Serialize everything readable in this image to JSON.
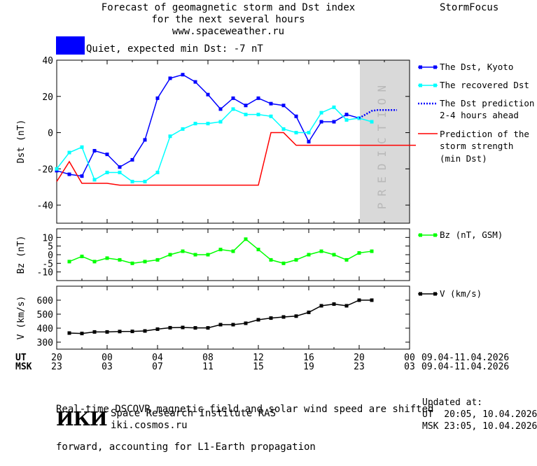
{
  "header": {
    "title_lines": [
      "Forecast of geomagnetic storm and Dst index",
      "for the next several hours",
      "www.spaceweather.ru"
    ],
    "brand": "StormFocus"
  },
  "status": {
    "color": "#0000ff",
    "text": "Quiet, expected min Dst: -7 nT"
  },
  "legend": {
    "dst_kyoto": "The Dst, Kyoto",
    "dst_recovered": "The recovered Dst",
    "dst_prediction": [
      "The Dst prediction",
      "2-4 hours ahead"
    ],
    "storm_strength": [
      "Prediction of the",
      "storm strength",
      "(min Dst)"
    ],
    "bz": "Bz (nT, GSM)",
    "v": "V (km/s)"
  },
  "prediction_band_label": "PREDICTION",
  "time_axis": {
    "ut_label": "UT",
    "msk_label": "MSK",
    "ut_ticks": [
      "20",
      "00",
      "04",
      "08",
      "12",
      "16",
      "20",
      "00"
    ],
    "msk_ticks": [
      "23",
      "03",
      "07",
      "11",
      "15",
      "19",
      "23",
      "03"
    ],
    "date_range": "09.04-11.04.2026"
  },
  "footer": {
    "note_lines": [
      "Real-time DSCOVR magnetic field and solar wind speed are shifted",
      "forward, accounting for L1-Earth propagation"
    ],
    "institute": "Space Research Institute RAS",
    "institute_url": "iki.cosmos.ru",
    "logo_text": "ИКИ",
    "updated_label": "Updated at:",
    "updated_ut": "UT  20:05, 10.04.2026",
    "updated_msk": "MSK 23:05, 10.04.2026"
  },
  "chart_data": [
    {
      "type": "line",
      "ylabel": "Dst (nT)",
      "ylim": [
        -50,
        40
      ],
      "yticks": [
        40,
        20,
        0,
        -20,
        -40
      ],
      "x_hours_from_20UT": [
        0,
        1,
        2,
        3,
        4,
        5,
        6,
        7,
        8,
        9,
        10,
        11,
        12,
        13,
        14,
        15,
        16,
        17,
        18,
        19,
        20,
        21,
        22,
        23,
        24
      ],
      "prediction_x_range": [
        24,
        27
      ],
      "series": [
        {
          "name": "The Dst, Kyoto",
          "color": "#0000ff",
          "x": [
            0,
            1,
            2,
            3,
            4,
            5,
            6,
            7,
            8,
            9,
            10,
            11,
            12,
            13,
            14,
            15,
            16,
            17,
            18,
            19,
            20,
            21,
            22,
            23,
            24
          ],
          "values": [
            -21,
            -23,
            -24,
            -10,
            -12,
            -19,
            -15,
            -4,
            19,
            30,
            32,
            28,
            21,
            13,
            19,
            15,
            19,
            16,
            15,
            9,
            -5,
            6,
            6,
            10,
            8
          ]
        },
        {
          "name": "The recovered Dst",
          "color": "#00ffff",
          "x": [
            0,
            1,
            2,
            3,
            4,
            5,
            6,
            7,
            8,
            9,
            10,
            11,
            12,
            13,
            14,
            15,
            16,
            17,
            18,
            19,
            20,
            21,
            22,
            23,
            24,
            25
          ],
          "values": [
            -20,
            -11,
            -8,
            -26,
            -22,
            -22,
            -27,
            -27,
            -22,
            -2,
            2,
            5,
            5,
            6,
            13,
            10,
            10,
            9,
            2,
            0,
            0,
            11,
            14,
            7,
            8,
            6
          ]
        },
        {
          "name": "The Dst prediction 2-4 hours ahead",
          "color": "#0000ff",
          "x": [
            24,
            24.5,
            25,
            25.5,
            26,
            26.5,
            27
          ],
          "values": [
            8,
            10,
            12,
            12.5,
            12.5,
            12.5,
            12.5
          ]
        },
        {
          "name": "Prediction of the storm strength (min Dst)",
          "color": "#ff0000",
          "x": [
            0,
            1,
            2,
            3,
            4,
            5,
            6,
            7,
            8,
            9,
            10,
            11,
            12,
            13,
            14,
            15,
            15.5,
            16,
            17,
            18,
            19,
            20,
            21,
            22,
            23,
            24,
            25,
            26,
            27,
            28,
            28.5
          ],
          "values": [
            -27,
            -16,
            -28,
            -28,
            -28,
            -29,
            -29,
            -29,
            -29,
            -29,
            -29,
            -29,
            -29,
            -29,
            -29,
            -29,
            -29,
            -29,
            0,
            0,
            -7,
            -7,
            -7,
            -7,
            -7,
            -7,
            -7,
            -7,
            -7,
            -7,
            -7
          ]
        }
      ]
    },
    {
      "type": "line",
      "ylabel": "Bz (nT)",
      "ylim": [
        -15,
        15
      ],
      "yticks": [
        10,
        5,
        0,
        -5,
        -10
      ],
      "series": [
        {
          "name": "Bz (nT, GSM)",
          "color": "#00ff00",
          "x": [
            1,
            2,
            3,
            4,
            5,
            6,
            7,
            8,
            9,
            10,
            11,
            12,
            13,
            14,
            15,
            16,
            17,
            18,
            19,
            20,
            21,
            22,
            23,
            24,
            25
          ],
          "values": [
            -4,
            -1,
            -4,
            -2,
            -3,
            -5,
            -4,
            -3,
            0,
            2,
            0,
            0,
            3,
            2,
            9,
            3,
            -3,
            -5,
            -3,
            0,
            2,
            0,
            -3,
            1,
            2
          ]
        }
      ]
    },
    {
      "type": "line",
      "ylabel": "V (km/s)",
      "ylim": [
        250,
        700
      ],
      "yticks": [
        600,
        500,
        400,
        300
      ],
      "series": [
        {
          "name": "V (km/s)",
          "color": "#000000",
          "x": [
            1,
            2,
            3,
            4,
            5,
            6,
            7,
            8,
            9,
            10,
            11,
            12,
            13,
            14,
            15,
            16,
            17,
            18,
            19,
            20,
            21,
            22,
            23,
            24,
            25
          ],
          "values": [
            365,
            362,
            373,
            373,
            376,
            377,
            380,
            393,
            403,
            405,
            402,
            402,
            425,
            425,
            435,
            460,
            472,
            480,
            486,
            513,
            560,
            572,
            560,
            600,
            600
          ]
        }
      ]
    }
  ]
}
